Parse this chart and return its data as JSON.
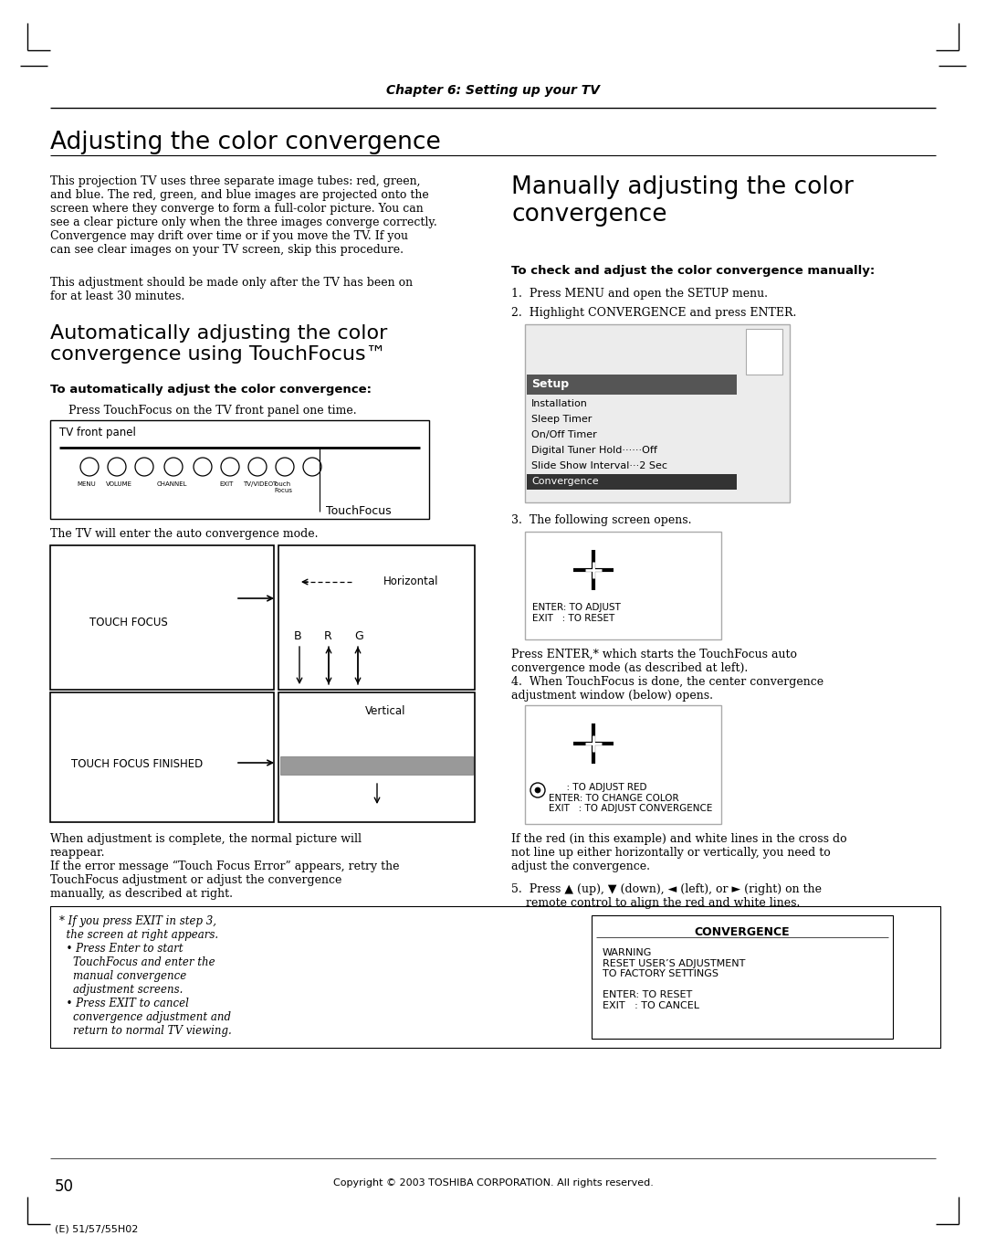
{
  "page_title": "Chapter 6: Setting up your TV",
  "section1_title": "Adjusting the color convergence",
  "section1_body1": "This projection TV uses three separate image tubes: red, green,\nand blue. The red, green, and blue images are projected onto the\nscreen where they converge to form a full-color picture. You can\nsee a clear picture only when the three images converge correctly.\nConvergence may drift over time or if you move the TV. If you\ncan see clear images on your TV screen, skip this procedure.",
  "section1_body2": "This adjustment should be made only after the TV has been on\nfor at least 30 minutes.",
  "section2_title": "Automatically adjusting the color\nconvergence using TouchFocus™",
  "section2_sub": "To automatically adjust the color convergence:",
  "section2_body1": "Press TouchFocus on the TV front panel one time.",
  "tv_panel_label": "TV front panel",
  "touchfocus_label": "TouchFocus",
  "touch_focus_label": "TOUCH FOCUS",
  "touch_focus_finished_label": "TOUCH FOCUS FINISHED",
  "horizontal_label": "Horizontal",
  "vertical_label": "Vertical",
  "b_label": "B",
  "r_label": "R",
  "g_label": "G",
  "section2_body2": "The TV will enter the auto convergence mode.",
  "section2_body3": "When adjustment is complete, the normal picture will\nreappear.",
  "section2_body4": "If the error message “Touch Focus Error” appears, retry the\nTouchFocus adjustment or adjust the convergence\nmanually, as described at right.",
  "section3_title": "Manually adjusting the color\nconvergence",
  "section3_sub": "To check and adjust the color convergence manually:",
  "step1": "Press MENU and open the SETUP menu.",
  "step2": "Highlight CONVERGENCE and press ENTER.",
  "setup_menu_items": [
    "Installation",
    "Sleep Timer",
    "On/Off Timer",
    "Digital Tuner Hold······Off",
    "Slide Show Interval···2 Sec",
    "Convergence"
  ],
  "step3": "The following screen opens.",
  "enter_adjust_text": "ENTER: TO ADJUST\nEXIT   : TO RESET",
  "step3_body": "Press ENTER,* which starts the TouchFocus auto\nconvergence mode (as described at left).",
  "step4": "When TouchFocus is done, the center convergence\nadjustment window (below) opens.",
  "adjust_red_text": "      : TO ADJUST RED\nENTER: TO CHANGE COLOR\nEXIT   : TO ADJUST CONVERGENCE",
  "step5_text": "5.  Press ▲ (up), ▼ (down), ◄ (left), or ► (right) on the\n    remote control to align the red and white lines.",
  "footnote_left": "* If you press EXIT in step 3,\n  the screen at right appears.\n  • Press Enter to start\n    TouchFocus and enter the\n    manual convergence\n    adjustment screens.\n  • Press EXIT to cancel\n    convergence adjustment and\n    return to normal TV viewing.",
  "convergence_box_title": "CONVERGENCE",
  "convergence_box_body": "WARNING\nRESET USER’S ADJUSTMENT\nTO FACTORY SETTINGS\n\nENTER: TO RESET\nEXIT   : TO CANCEL",
  "page_number": "50",
  "copyright": "Copyright © 2003 TOSHIBA CORPORATION. All rights reserved.",
  "footer": "(E) 51/57/55H02"
}
